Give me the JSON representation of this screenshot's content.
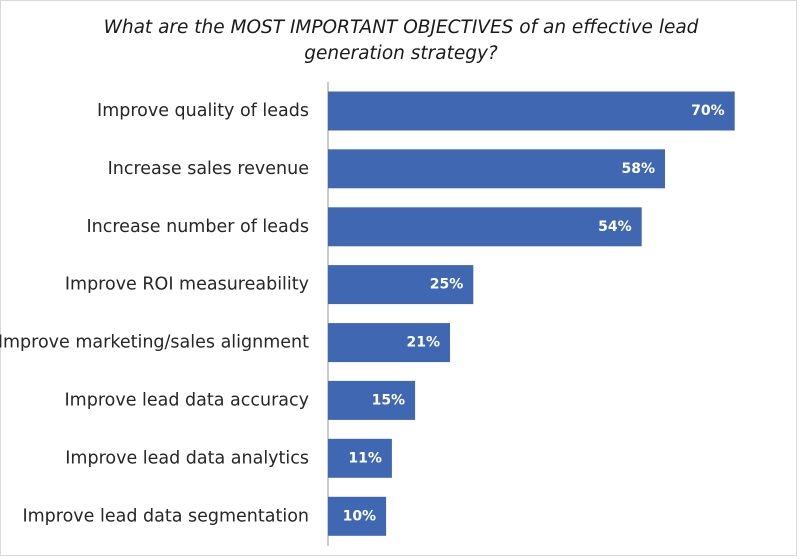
{
  "chart_data": {
    "type": "bar",
    "orientation": "horizontal",
    "title": "What are the MOST IMPORTANT OBJECTIVES of an effective lead generation strategy?",
    "categories": [
      "Improve quality of leads",
      "Increase sales revenue",
      "Increase number of leads",
      "Improve ROI measureability",
      "Improve marketing/sales alignment",
      "Improve lead data accuracy",
      "Improve lead data analytics",
      "Improve lead data segmentation"
    ],
    "values": [
      70,
      58,
      54,
      25,
      21,
      15,
      11,
      10
    ],
    "value_labels": [
      "70%",
      "58%",
      "54%",
      "25%",
      "21%",
      "15%",
      "11%",
      "10%"
    ],
    "xlim": [
      0,
      80
    ],
    "xlabel": "",
    "ylabel": "",
    "grid": false,
    "legend": "none",
    "bar_color": "#4068b2",
    "label_color": "#ffffff"
  }
}
